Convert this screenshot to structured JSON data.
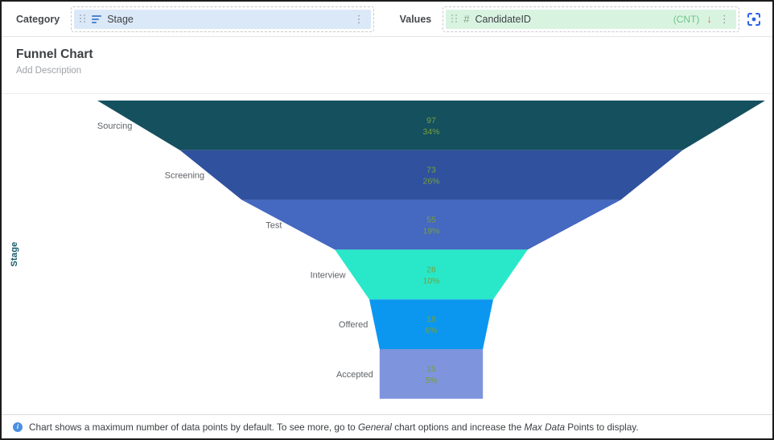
{
  "toolbar": {
    "category_label": "Category",
    "category_field": "Stage",
    "values_label": "Values",
    "values_type_symbol": "#",
    "values_field": "CandidateID",
    "values_aggregate": "(CNT)",
    "sort_arrow": "↓",
    "kebab": "⋮"
  },
  "header": {
    "title": "Funnel Chart",
    "subtitle": "Add Description"
  },
  "chart_data": {
    "type": "funnel",
    "title": "Funnel Chart",
    "axis_label": "Stage",
    "categories": [
      "Sourcing",
      "Screening",
      "Test",
      "Interview",
      "Offered",
      "Accepted"
    ],
    "values": [
      97,
      73,
      55,
      28,
      18,
      15
    ],
    "percent_labels": [
      "34%",
      "26%",
      "19%",
      "10%",
      "6%",
      "5%"
    ],
    "colors": [
      "#15505F",
      "#30519E",
      "#4568C0",
      "#29E8C9",
      "#0B97F0",
      "#7E94DD"
    ],
    "value_label_color": "#76A03D",
    "category_label_color": "#5f6368",
    "axis_label_color": "#175a6b",
    "legend": "none",
    "orientation": "vertical"
  },
  "footer": {
    "text1": "Chart shows a maximum number of data points by default. To see more, go to ",
    "italic1": "General",
    "text2": " chart options and increase the ",
    "italic2": "Max Data",
    "text3": " Points to display."
  }
}
